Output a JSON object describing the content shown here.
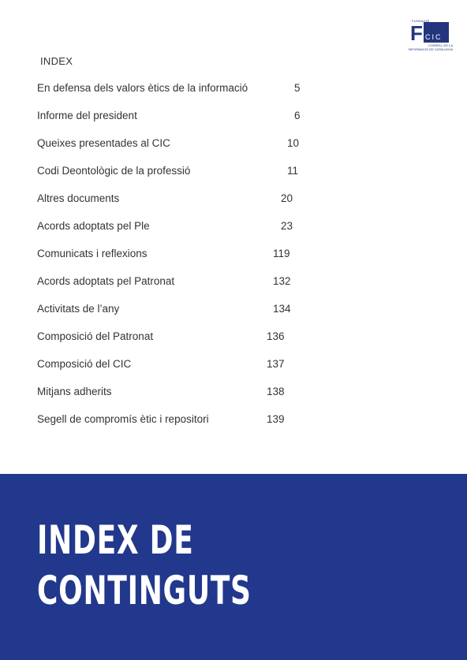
{
  "logo": {
    "top_text": "FUNDACIÓ",
    "letter": "F",
    "box_text": "CIC",
    "sub_line1": "CONSELL DE LA",
    "sub_line2": "INFORMACIÓ DE CATALUNYA"
  },
  "index_heading": "INDEX",
  "toc": [
    {
      "title": "En defensa dels valors ètics de la informació",
      "page": "5"
    },
    {
      "title": "Informe del president",
      "page": "6"
    },
    {
      "title": "Queixes presentades al CIC",
      "page": "10"
    },
    {
      "title": "Codi Deontològic de la professió",
      "page": "11"
    },
    {
      "title": "Altres documents",
      "page": "20"
    },
    {
      "title": "Acords adoptats pel Ple",
      "page": "23"
    },
    {
      "title": "Comunicats i reflexions",
      "page": "119"
    },
    {
      "title": "Acords adoptats pel Patronat",
      "page": "132"
    },
    {
      "title": "Activitats de l’any",
      "page": "134"
    },
    {
      "title": "Composició del Patronat",
      "page": "136"
    },
    {
      "title": "Composició del CIC",
      "page": "137"
    },
    {
      "title": "Mitjans adherits",
      "page": "138"
    },
    {
      "title": "Segell de compromís ètic i repositori",
      "page": "139"
    }
  ],
  "banner": {
    "line1": "INDEX DE",
    "line2": "CONTINGUTS"
  }
}
